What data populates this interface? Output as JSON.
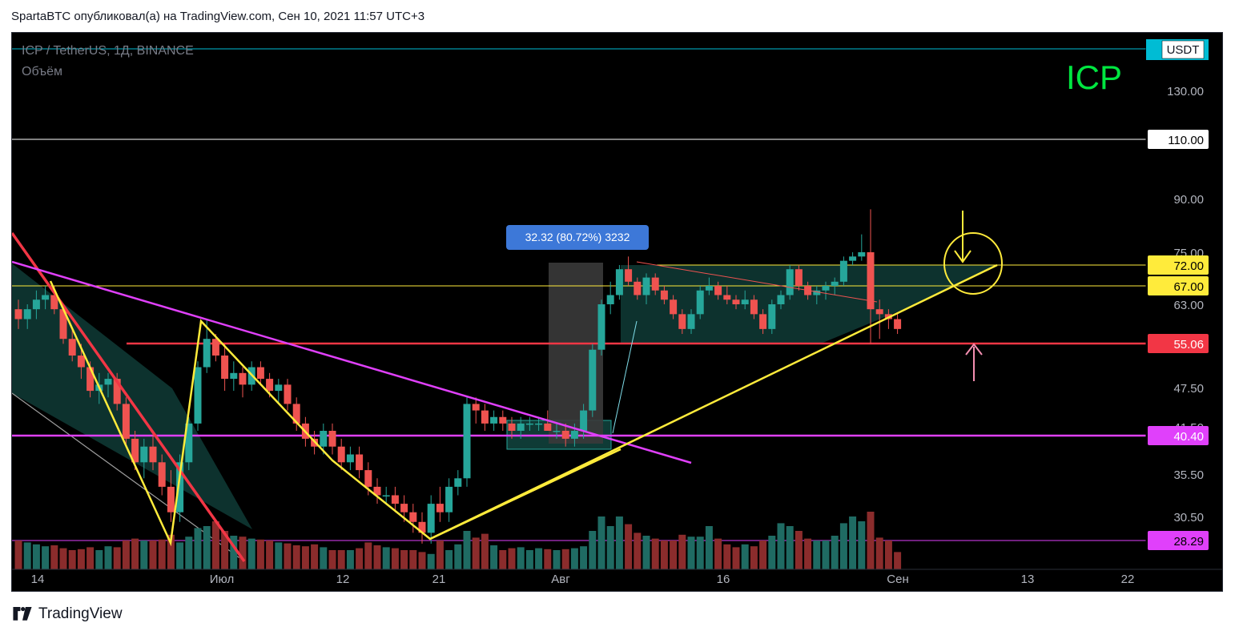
{
  "header": {
    "published_text": "SpartaBTC опубликовал(а) на TradingView.com, Сен 10, 2021 11:57 UTC+3"
  },
  "chart_header": {
    "symbol_line": "ICP / TetherUS, 1Д, BINANCE",
    "volume_label": "Объём",
    "big_title": "ICP"
  },
  "measure_label": "32.32 (80.72%) 3232",
  "footer": {
    "brand": "TradingView"
  },
  "colors": {
    "up": "#26a69a",
    "down": "#ef5350",
    "vol_up": "#1f6b63",
    "vol_down": "#8b2c2c",
    "yellow": "#ffeb3b",
    "magenta": "#e040fb",
    "red_line": "#f23645",
    "white": "#ffffff",
    "teal": "#00bcd4"
  },
  "chart_data": {
    "type": "candlestick",
    "price_scale_labels": [
      "USDT",
      "130.00",
      "110.00",
      "90.00",
      "75.00",
      "72.00",
      "67.00",
      "63.00",
      "55.06",
      "47.50",
      "41.50",
      "40.40",
      "35.50",
      "30.50",
      "28.29"
    ],
    "time_labels": [
      "14",
      "Июл",
      "12",
      "21",
      "Авг",
      "16",
      "Сен",
      "13",
      "22"
    ],
    "horizontal_levels": [
      {
        "value": 150,
        "label": "",
        "color": "#00bcd4"
      },
      {
        "value": 110,
        "label": "110.00",
        "color": "#ffffff"
      },
      {
        "value": 72.0,
        "label": "72.00",
        "color": "#ffeb3b"
      },
      {
        "value": 67.0,
        "label": "67.00",
        "color": "#ffeb3b"
      },
      {
        "value": 55.06,
        "label": "55.06",
        "color": "#f23645"
      },
      {
        "value": 40.4,
        "label": "40.40",
        "color": "#e040fb"
      },
      {
        "value": 28.29,
        "label": "28.29",
        "color": "#e040fb"
      }
    ],
    "candles": [
      [
        62,
        64,
        58,
        60,
        3
      ],
      [
        60,
        63,
        58,
        62,
        2.8
      ],
      [
        62,
        66,
        60,
        64,
        2.6
      ],
      [
        64,
        67,
        62,
        65,
        2.4
      ],
      [
        65,
        67,
        61,
        62,
        2.5
      ],
      [
        62,
        63,
        55,
        56,
        2.2
      ],
      [
        56,
        58,
        52,
        53,
        2
      ],
      [
        53,
        55,
        49,
        51,
        2.1
      ],
      [
        51,
        52,
        46,
        47,
        2.3
      ],
      [
        47,
        50,
        45,
        48,
        2
      ],
      [
        48,
        50,
        46,
        49,
        2.4
      ],
      [
        49,
        50,
        44,
        45,
        2.3
      ],
      [
        45,
        46,
        39,
        40,
        3
      ],
      [
        40,
        41,
        36,
        37,
        3.2
      ],
      [
        37,
        40,
        35,
        39,
        3
      ],
      [
        39,
        41,
        36,
        37,
        3
      ],
      [
        37,
        38,
        33,
        34,
        3.1
      ],
      [
        34,
        36,
        30,
        31,
        3.6
      ],
      [
        31,
        38,
        30,
        37,
        2.8
      ],
      [
        37,
        43,
        36,
        42,
        3.4
      ],
      [
        42,
        52,
        41,
        51,
        4.3
      ],
      [
        51,
        60,
        50,
        56,
        4.5
      ],
      [
        56,
        57,
        52,
        53,
        5
      ],
      [
        53,
        55,
        47,
        49,
        4
      ],
      [
        49,
        52,
        47,
        50,
        3.5
      ],
      [
        50,
        51,
        46,
        48,
        3.4
      ],
      [
        48,
        52,
        47,
        51,
        3.2
      ],
      [
        51,
        52,
        48,
        49,
        3.1
      ],
      [
        49,
        50,
        46,
        47,
        3
      ],
      [
        47,
        49,
        45,
        48,
        2.8
      ],
      [
        48,
        49,
        44,
        45,
        2.7
      ],
      [
        45,
        46,
        41,
        42,
        2.5
      ],
      [
        42,
        43,
        39,
        40,
        2.4
      ],
      [
        40,
        41,
        38,
        39,
        2.6
      ],
      [
        39,
        42,
        38,
        41,
        2.3
      ],
      [
        41,
        42,
        38,
        39,
        2
      ],
      [
        39,
        40,
        36,
        37,
        2
      ],
      [
        37,
        39,
        36,
        38,
        2
      ],
      [
        38,
        39,
        35,
        36,
        2.2
      ],
      [
        36,
        37,
        33,
        34,
        2.8
      ],
      [
        34,
        35,
        32,
        33,
        2.5
      ],
      [
        33,
        34,
        32,
        33,
        2.3
      ],
      [
        33,
        34,
        31,
        32,
        2.2
      ],
      [
        32,
        33,
        30,
        31,
        2
      ],
      [
        31,
        32,
        29,
        30,
        2
      ],
      [
        30,
        31,
        28,
        29,
        1.8
      ],
      [
        29,
        33,
        28,
        32,
        1.6
      ],
      [
        32,
        34,
        30,
        31,
        3
      ],
      [
        31,
        35,
        30,
        34,
        2
      ],
      [
        34,
        36,
        33,
        35,
        2.6
      ],
      [
        35,
        46,
        34,
        45,
        4
      ],
      [
        45,
        46,
        42,
        44,
        3.3
      ],
      [
        44,
        45,
        41,
        42,
        3.7
      ],
      [
        42,
        44,
        41,
        43,
        2.5
      ],
      [
        43,
        44,
        41,
        42,
        2
      ],
      [
        42,
        43,
        40,
        41,
        2.2
      ],
      [
        41,
        43,
        40,
        42,
        2.3
      ],
      [
        42,
        43,
        41,
        42,
        2
      ],
      [
        42,
        43,
        41,
        42,
        2.2
      ],
      [
        42,
        44,
        41,
        41,
        2.1
      ],
      [
        41,
        42,
        40,
        41,
        2
      ],
      [
        41,
        42,
        39,
        40,
        2.1
      ],
      [
        40,
        42,
        39,
        41,
        2.2
      ],
      [
        41,
        45,
        40,
        44,
        2.4
      ],
      [
        44,
        55,
        43,
        54,
        4
      ],
      [
        54,
        64,
        53,
        63,
        5.5
      ],
      [
        63,
        68,
        61,
        65,
        4.5
      ],
      [
        65,
        72,
        64,
        71,
        5.5
      ],
      [
        71,
        74,
        67,
        68,
        4.7
      ],
      [
        68,
        69,
        64,
        65,
        3.8
      ],
      [
        65,
        70,
        63,
        69,
        3.5
      ],
      [
        69,
        70,
        65,
        66,
        3.2
      ],
      [
        66,
        67,
        63,
        64,
        3
      ],
      [
        64,
        65,
        60,
        61,
        3
      ],
      [
        61,
        62,
        57,
        58,
        3.6
      ],
      [
        58,
        62,
        57,
        61,
        3.4
      ],
      [
        61,
        67,
        60,
        66,
        3.4
      ],
      [
        66,
        69,
        65,
        67,
        4.5
      ],
      [
        67,
        68,
        64,
        65,
        3.2
      ],
      [
        65,
        67,
        63,
        64,
        2.6
      ],
      [
        64,
        65,
        62,
        63,
        2.3
      ],
      [
        63,
        66,
        62,
        64,
        2.6
      ],
      [
        64,
        65,
        60,
        61,
        2.4
      ],
      [
        61,
        62,
        57,
        58,
        3
      ],
      [
        58,
        64,
        57,
        63,
        3.5
      ],
      [
        63,
        66,
        62,
        65,
        4.8
      ],
      [
        65,
        72,
        64,
        71,
        4.5
      ],
      [
        71,
        72,
        66,
        67,
        4
      ],
      [
        67,
        68,
        64,
        65,
        3.2
      ],
      [
        65,
        67,
        63,
        66,
        3
      ],
      [
        66,
        68,
        64,
        67,
        3
      ],
      [
        67,
        69,
        65,
        68,
        3.5
      ],
      [
        68,
        74,
        67,
        73,
        4.8
      ],
      [
        73,
        75,
        72,
        74,
        5.5
      ],
      [
        74,
        80,
        73,
        75,
        5
      ],
      [
        75,
        87,
        55,
        62,
        6
      ],
      [
        62,
        64,
        56,
        61,
        3.3
      ],
      [
        61,
        62,
        58,
        60,
        3
      ],
      [
        60,
        61,
        57,
        58,
        1.8
      ]
    ],
    "ylim": [
      27,
      150
    ]
  }
}
